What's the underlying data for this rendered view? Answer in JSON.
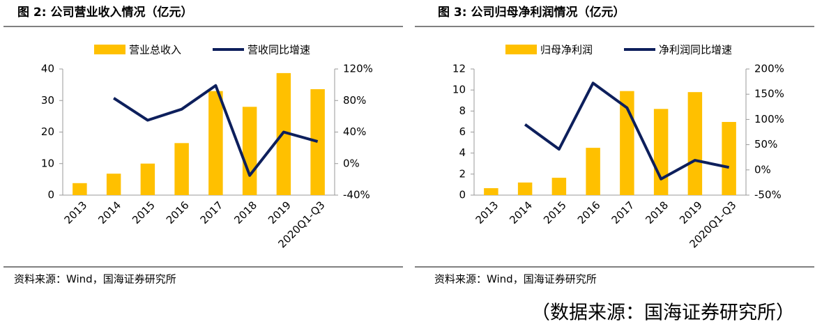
{
  "chart_data": [
    {
      "type": "bar",
      "title": "图 2:  公司营业收入情况（亿元）",
      "categories": [
        "2013",
        "2014",
        "2015",
        "2016",
        "2017",
        "2018",
        "2019",
        "2020Q1-Q3"
      ],
      "series": [
        {
          "name": "营业总收入",
          "type": "bar",
          "color": "#FFC000",
          "values": [
            3.8,
            6.8,
            10,
            16.5,
            33,
            28,
            38.7,
            33.6
          ]
        },
        {
          "name": "营收同比增速",
          "type": "line",
          "axis": "y2",
          "color": "#0D1F5C",
          "values": [
            null,
            83,
            55,
            69,
            99,
            -15,
            40,
            28
          ]
        }
      ],
      "ylim": [
        0,
        40
      ],
      "yticks": [
        0,
        10,
        20,
        30,
        40
      ],
      "y2lim": [
        -40,
        120
      ],
      "y2ticks": [
        {
          "value": -40,
          "label": "-40%"
        },
        {
          "value": 0,
          "label": "0%"
        },
        {
          "value": 40,
          "label": "40%"
        },
        {
          "value": 80,
          "label": "80%"
        },
        {
          "value": 120,
          "label": "120%"
        }
      ],
      "legend": "top",
      "source": "资料来源：Wind，国海证券研究所"
    },
    {
      "type": "bar",
      "title": "图 3:  公司归母净利润情况（亿元）",
      "categories": [
        "2013",
        "2014",
        "2015",
        "2016",
        "2017",
        "2018",
        "2019",
        "2020Q1-Q3"
      ],
      "series": [
        {
          "name": "归母净利润",
          "type": "bar",
          "color": "#FFC000",
          "values": [
            0.66,
            1.2,
            1.65,
            4.5,
            9.9,
            8.2,
            9.8,
            6.96
          ]
        },
        {
          "name": "净利润同比增速",
          "type": "line",
          "axis": "y2",
          "color": "#0D1F5C",
          "values": [
            null,
            90,
            41,
            172,
            123,
            -18,
            19,
            5
          ]
        }
      ],
      "ylim": [
        0,
        12
      ],
      "yticks": [
        0,
        2,
        4,
        6,
        8,
        10,
        12
      ],
      "y2lim": [
        -50,
        200
      ],
      "y2ticks": [
        {
          "value": -50,
          "label": "-50%"
        },
        {
          "value": 0,
          "label": "0%"
        },
        {
          "value": 50,
          "label": "50%"
        },
        {
          "value": 100,
          "label": "100%"
        },
        {
          "value": 150,
          "label": "150%"
        },
        {
          "value": 200,
          "label": "200%"
        }
      ],
      "legend": "top",
      "source": "资料来源：Wind，国海证券研究所"
    }
  ],
  "caption": "（数据来源：国海证券研究所）"
}
